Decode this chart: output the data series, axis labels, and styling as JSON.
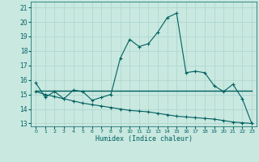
{
  "xlabel": "Humidex (Indice chaleur)",
  "background_color": "#c8e8e0",
  "grid_color": "#b0d8d0",
  "line_color": "#006060",
  "xlim": [
    -0.5,
    23.5
  ],
  "ylim": [
    12.8,
    21.4
  ],
  "xticks": [
    0,
    1,
    2,
    3,
    4,
    5,
    6,
    7,
    8,
    9,
    10,
    11,
    12,
    13,
    14,
    15,
    16,
    17,
    18,
    19,
    20,
    21,
    22,
    23
  ],
  "yticks": [
    13,
    14,
    15,
    16,
    17,
    18,
    19,
    20,
    21
  ],
  "line1_x": [
    0,
    1,
    2,
    3,
    4,
    5,
    6,
    7,
    8,
    9,
    10,
    11,
    12,
    13,
    14,
    15,
    16,
    17,
    18,
    19,
    20,
    21,
    22,
    23
  ],
  "line1_y": [
    15.8,
    14.8,
    15.2,
    14.7,
    15.3,
    15.2,
    14.6,
    14.8,
    15.0,
    17.5,
    18.8,
    18.3,
    18.5,
    19.3,
    20.3,
    20.6,
    16.5,
    16.6,
    16.5,
    15.6,
    15.2,
    15.7,
    14.7,
    13.0
  ],
  "line2_x": [
    0,
    23
  ],
  "line2_y": [
    15.25,
    15.25
  ],
  "line3_x": [
    0,
    1,
    2,
    3,
    4,
    5,
    6,
    7,
    8,
    9,
    10,
    11,
    12,
    13,
    14,
    15,
    16,
    17,
    18,
    19,
    20,
    21,
    22,
    23
  ],
  "line3_y": [
    15.2,
    15.0,
    14.85,
    14.7,
    14.55,
    14.4,
    14.3,
    14.2,
    14.1,
    14.0,
    13.9,
    13.85,
    13.8,
    13.7,
    13.6,
    13.5,
    13.45,
    13.4,
    13.35,
    13.3,
    13.2,
    13.1,
    13.05,
    13.0
  ]
}
